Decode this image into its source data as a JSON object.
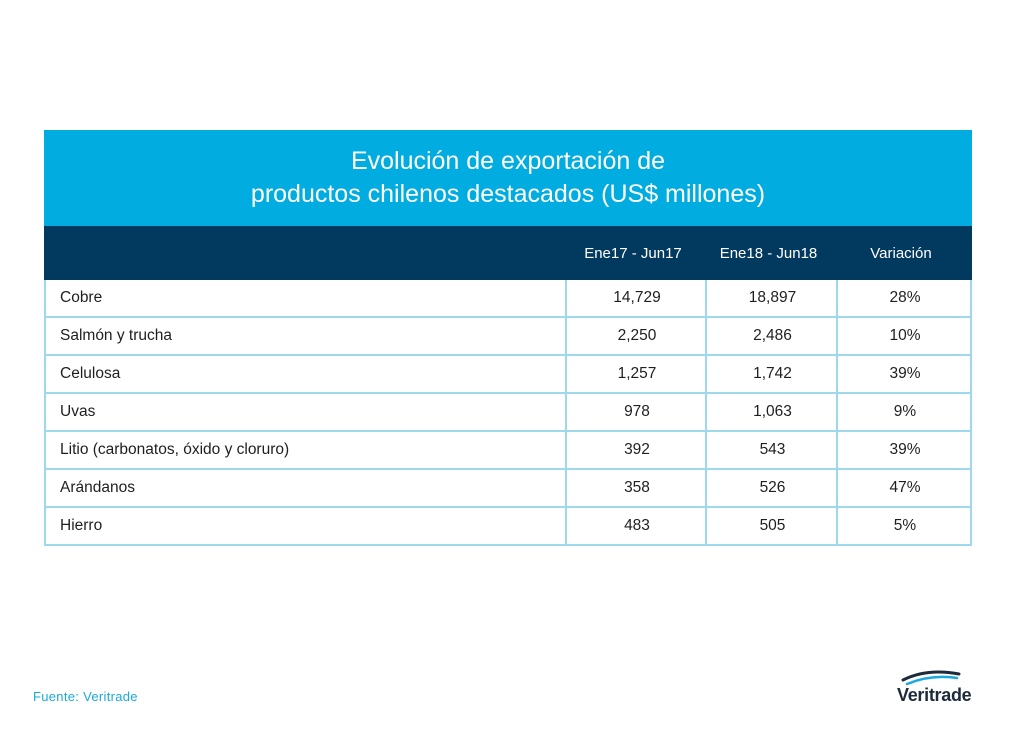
{
  "chart_data": {
    "type": "table",
    "title_lines": [
      "Evolución de exportación de",
      "productos chilenos destacados (US$ millones)"
    ],
    "columns": [
      "",
      "Ene17 - Jun17",
      "Ene18 - Jun18",
      "Variación"
    ],
    "rows": [
      {
        "product": "Cobre",
        "v2017": "14,729",
        "v2018": "18,897",
        "variation": "28%"
      },
      {
        "product": "Salmón y trucha",
        "v2017": "2,250",
        "v2018": "2,486",
        "variation": "10%"
      },
      {
        "product": "Celulosa",
        "v2017": "1,257",
        "v2018": "1,742",
        "variation": "39%"
      },
      {
        "product": "Uvas",
        "v2017": "978",
        "v2018": "1,063",
        "variation": "9%"
      },
      {
        "product": "Litio (carbonatos, óxido y cloruro)",
        "v2017": "392",
        "v2018": "543",
        "variation": "39%"
      },
      {
        "product": "Arándanos",
        "v2017": "358",
        "v2018": "526",
        "variation": "47%"
      },
      {
        "product": "Hierro",
        "v2017": "483",
        "v2018": "505",
        "variation": "5%"
      }
    ]
  },
  "source": "Fuente: Veritrade",
  "logo": {
    "text": "Veritrade",
    "icon": "veritrade-swoosh-icon"
  },
  "colors": {
    "title_band": "#00ace0",
    "header_band": "#013a5e",
    "grid": "#9ed8ec",
    "source_text": "#1aa9dc"
  }
}
